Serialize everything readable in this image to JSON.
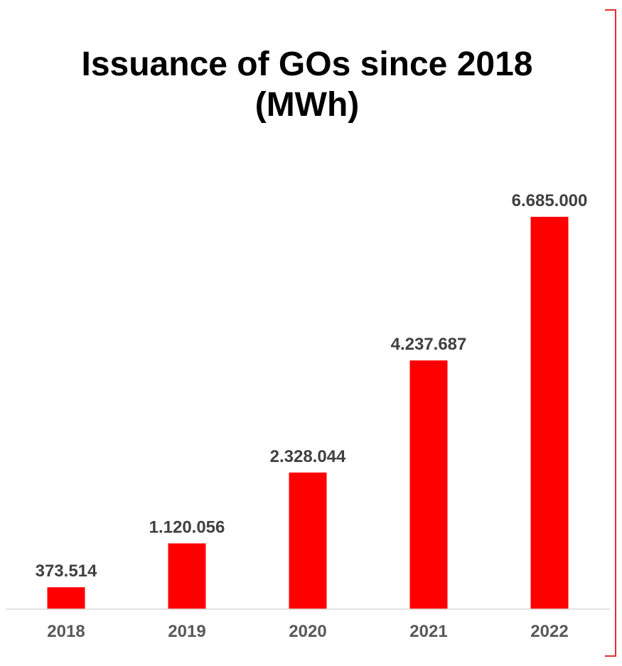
{
  "chart_data": {
    "type": "bar",
    "title_lines": [
      "Issuance of GOs since 2018",
      "(MWh)"
    ],
    "categories": [
      "2018",
      "2019",
      "2020",
      "2021",
      "2022"
    ],
    "values": [
      373514,
      1120056,
      2328044,
      4237687,
      6685000
    ],
    "value_labels": [
      "373.514",
      "1.120.056",
      "2.328.044",
      "4.237.687",
      "6.685.000"
    ],
    "xlabel": "",
    "ylabel": "",
    "ylim": [
      0,
      7500000
    ],
    "grid": false,
    "legend": "none",
    "bar_color": "#FF0000",
    "axis_color": "#D9D9D9",
    "bracket_color": "#E03030"
  }
}
